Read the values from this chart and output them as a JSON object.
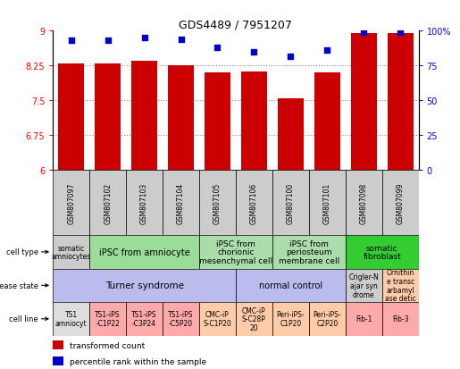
{
  "title": "GDS4489 / 7951207",
  "samples": [
    "GSM807097",
    "GSM807102",
    "GSM807103",
    "GSM807104",
    "GSM807105",
    "GSM807106",
    "GSM807100",
    "GSM807101",
    "GSM807098",
    "GSM807099"
  ],
  "bar_values": [
    8.3,
    8.3,
    8.35,
    8.25,
    8.1,
    8.12,
    7.55,
    8.1,
    8.95,
    8.95
  ],
  "dot_values": [
    93,
    93,
    95,
    94,
    88,
    85,
    82,
    86,
    99,
    99
  ],
  "ylim": [
    6,
    9
  ],
  "yticks_left": [
    6,
    6.75,
    7.5,
    8.25,
    9
  ],
  "yticks_right": [
    0,
    25,
    50,
    75,
    100
  ],
  "bar_color": "#cc0000",
  "dot_color": "#0000cc",
  "col_bg_color": "#cccccc",
  "cell_type_row": {
    "groups": [
      {
        "label": "somatic\namniocytes",
        "span": [
          0,
          1
        ],
        "color": "#cccccc"
      },
      {
        "label": "iPSC from amniocyte",
        "span": [
          1,
          4
        ],
        "color": "#99dd99"
      },
      {
        "label": "iPSC from\nchorionic\nmesenchymal cell",
        "span": [
          4,
          6
        ],
        "color": "#aaddaa"
      },
      {
        "label": "iPSC from\nperiosteum\nmembrane cell",
        "span": [
          6,
          8
        ],
        "color": "#aaddaa"
      },
      {
        "label": "somatic\nfibroblast",
        "span": [
          8,
          10
        ],
        "color": "#33cc33"
      }
    ]
  },
  "disease_state_row": {
    "groups": [
      {
        "label": "Turner syndrome",
        "span": [
          0,
          5
        ],
        "color": "#bbbbee"
      },
      {
        "label": "normal control",
        "span": [
          5,
          8
        ],
        "color": "#bbbbee"
      },
      {
        "label": "Crigler-N\najar syn\ndrome",
        "span": [
          8,
          9
        ],
        "color": "#cccccc"
      },
      {
        "label": "Ornithin\ne transc\narbamyl\nase detic",
        "span": [
          9,
          10
        ],
        "color": "#ffccaa"
      }
    ]
  },
  "cell_line_row": {
    "groups": [
      {
        "label": "TS1\namniocyt",
        "span": [
          0,
          1
        ],
        "color": "#dddddd"
      },
      {
        "label": "TS1-iPS\n-C1P22",
        "span": [
          1,
          2
        ],
        "color": "#ffaaaa"
      },
      {
        "label": "TS1-iPS\n-C3P24",
        "span": [
          2,
          3
        ],
        "color": "#ffaaaa"
      },
      {
        "label": "TS1-iPS\n-C5P20",
        "span": [
          3,
          4
        ],
        "color": "#ffaaaa"
      },
      {
        "label": "CMC-iP\nS-C1P20",
        "span": [
          4,
          5
        ],
        "color": "#ffccaa"
      },
      {
        "label": "CMC-iP\nS-C28P\n20",
        "span": [
          5,
          6
        ],
        "color": "#ffccaa"
      },
      {
        "label": "Peri-iPS-\nC1P20",
        "span": [
          6,
          7
        ],
        "color": "#ffccaa"
      },
      {
        "label": "Peri-iPS-\nC2P20",
        "span": [
          7,
          8
        ],
        "color": "#ffccaa"
      },
      {
        "label": "Fib-1",
        "span": [
          8,
          9
        ],
        "color": "#ffaaaa"
      },
      {
        "label": "Fib-3",
        "span": [
          9,
          10
        ],
        "color": "#ffaaaa"
      }
    ]
  },
  "row_labels": [
    "cell type",
    "disease state",
    "cell line"
  ],
  "legend_red": "transformed count",
  "legend_blue": "percentile rank within the sample"
}
